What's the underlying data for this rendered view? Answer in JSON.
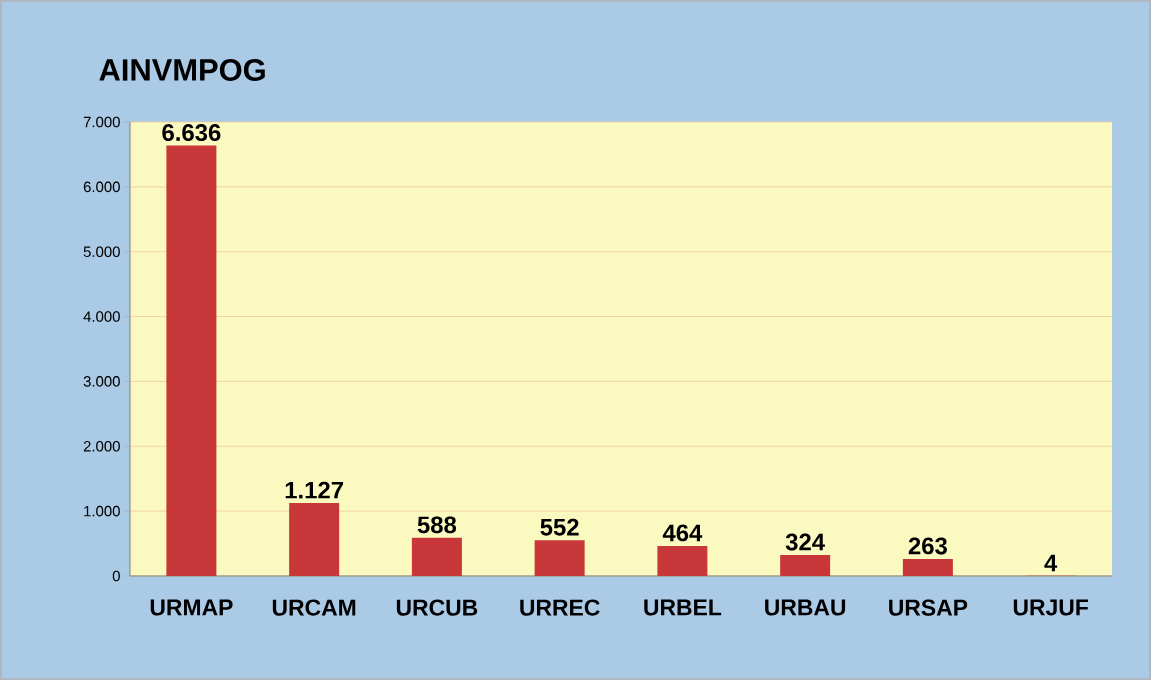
{
  "chart_data": {
    "type": "bar",
    "title": "AINVMPOG",
    "categories": [
      "URMAP",
      "URCAM",
      "URCUB",
      "URREC",
      "URBEL",
      "URBAU",
      "URSAP",
      "URJUF"
    ],
    "values": [
      6636,
      1127,
      588,
      552,
      464,
      324,
      263,
      4
    ],
    "value_labels": [
      "6.636",
      "1.127",
      "588",
      "552",
      "464",
      "324",
      "263",
      "4"
    ],
    "color": "#c8383a",
    "ylim": [
      0,
      7000
    ],
    "yticks": [
      {
        "value": 0,
        "label": "0"
      },
      {
        "value": 1000,
        "label": "1.000"
      },
      {
        "value": 2000,
        "label": "2.000"
      },
      {
        "value": 3000,
        "label": "3.000"
      },
      {
        "value": 4000,
        "label": "4.000"
      },
      {
        "value": 5000,
        "label": "5.000"
      },
      {
        "value": 6000,
        "label": "6.000"
      },
      {
        "value": 7000,
        "label": "7.000"
      }
    ],
    "grid": "y"
  }
}
